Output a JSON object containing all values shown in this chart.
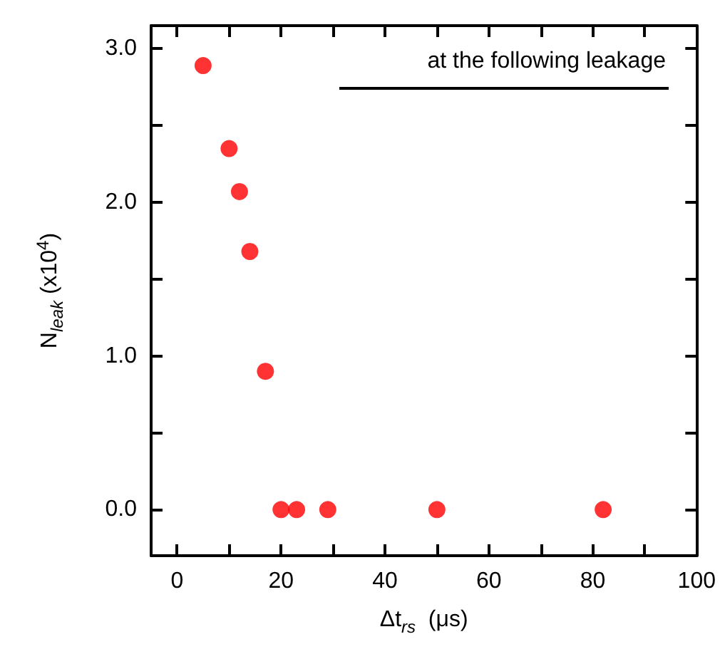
{
  "chart_data": {
    "type": "scatter",
    "xlabel": "Δt$_{rs}$  (μs)",
    "ylabel": "N$_{leak}$ (x10$^{4}$)",
    "annotations": [
      "at the following leakage"
    ],
    "x": [
      5,
      10,
      12,
      14,
      17,
      20,
      23,
      29,
      50,
      82
    ],
    "series": [
      {
        "color": "#ff0000",
        "values": [
          2.89,
          2.35,
          2.07,
          1.68,
          0.9,
          0,
          0,
          0,
          0,
          0
        ]
      }
    ],
    "xlim": [
      -5,
      100
    ],
    "xticks": [
      0,
      {
        "value": 10,
        "label": null
      },
      20,
      {
        "value": 30,
        "label": null
      },
      40,
      {
        "value": 50,
        "label": null
      },
      60,
      {
        "value": 70,
        "label": null
      },
      80,
      {
        "value": 90,
        "label": null
      },
      100
    ],
    "ylim": [
      -0.3,
      3.15
    ],
    "yticks": [
      {
        "value": 0,
        "label": "0.0"
      },
      {
        "value": 0.5,
        "label": null
      },
      {
        "value": 1,
        "label": "1.0"
      },
      {
        "value": 1.5,
        "label": null
      },
      {
        "value": 2,
        "label": "2.0"
      },
      {
        "value": 2.5,
        "label": null
      },
      {
        "value": 3,
        "label": "3.0"
      }
    ],
    "grid": false,
    "marker": "circle"
  }
}
